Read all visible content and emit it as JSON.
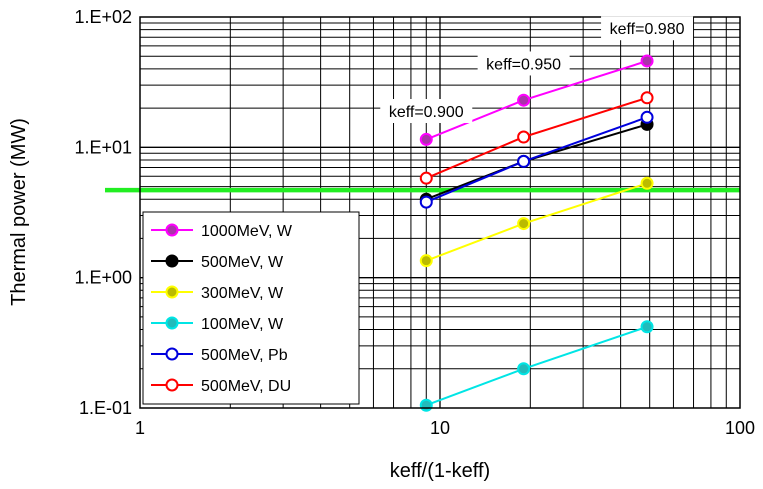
{
  "chart_data": {
    "type": "line",
    "xlabel": "keff/(1-keff)",
    "ylabel": "Thermal power (MW)",
    "x_scale": "log",
    "y_scale": "log",
    "xlim": [
      1,
      100
    ],
    "ylim": [
      0.1,
      100
    ],
    "x_ticks": [
      "1",
      "10",
      "100"
    ],
    "y_ticks": [
      "1.E-01",
      "1.E+00",
      "1.E+01",
      "1.E+02"
    ],
    "grid": true,
    "legend_position": "bottom-left",
    "x": [
      9,
      19,
      49
    ],
    "series": [
      {
        "name": "1000MeV, W",
        "color": "#ff00ff",
        "fill": "#aa33aa",
        "values": [
          11.5,
          23,
          46
        ]
      },
      {
        "name": "500MeV, W",
        "color": "#000000",
        "fill": "#000000",
        "values": [
          4.0,
          7.8,
          15
        ]
      },
      {
        "name": "300MeV, W",
        "color": "#ffff00",
        "fill": "#bbbb00",
        "values": [
          1.35,
          2.6,
          5.3
        ]
      },
      {
        "name": "100MeV, W",
        "color": "#00e5e5",
        "fill": "#22bbbb",
        "values": [
          0.105,
          0.2,
          0.42
        ]
      },
      {
        "name": "500MeV, Pb",
        "color": "#0000dd",
        "fill": "#ffffff",
        "values": [
          3.8,
          7.8,
          17
        ]
      },
      {
        "name": "500MeV, DU",
        "color": "#ff0000",
        "fill": "#ffffff",
        "values": [
          5.8,
          12,
          24
        ]
      }
    ],
    "reference_line": {
      "value": 4.7,
      "color": "#22ee22"
    },
    "annotations": [
      {
        "text": "keff=0.900",
        "x": 9,
        "y": 19
      },
      {
        "text": "keff=0.950",
        "x": 19,
        "y": 44
      },
      {
        "text": "keff=0.980",
        "x": 49,
        "y": 82
      }
    ]
  }
}
